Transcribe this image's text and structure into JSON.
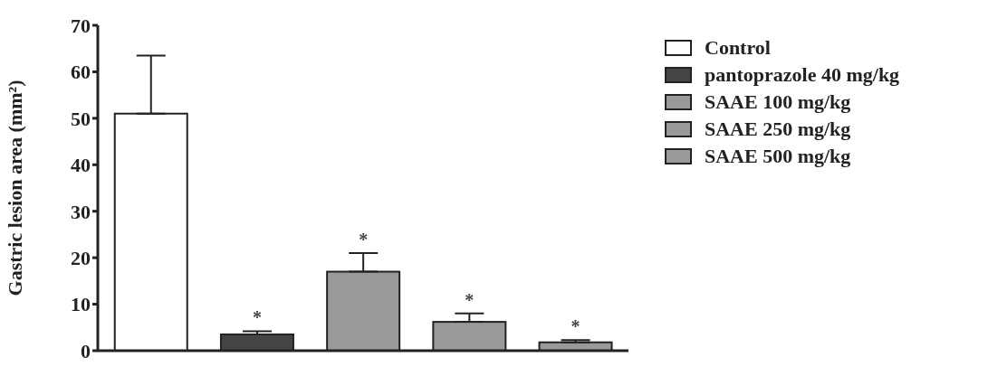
{
  "chart_data": {
    "type": "bar",
    "ylabel": "Gastric lesion area (mm²)",
    "categories": [
      null,
      null,
      null,
      null,
      null
    ],
    "stacked": true,
    "series": [
      {
        "name": "Control",
        "color": "#ffffff",
        "values": [
          51,
          null,
          null,
          null,
          null
        ],
        "errors": [
          [
            51,
            63.5
          ],
          null,
          null,
          null,
          null
        ],
        "value_labels": [
          null,
          null,
          null,
          null,
          null
        ]
      },
      {
        "name": "pantoprazole 40 mg/kg",
        "color": "#444444",
        "values": [
          null,
          3.5,
          null,
          null,
          null
        ],
        "errors": [
          null,
          [
            3.5,
            4.2
          ],
          null,
          null,
          null
        ],
        "value_labels": [
          null,
          "*",
          null,
          null,
          null
        ]
      },
      {
        "name": "SAAE 100 mg/kg",
        "color": "#999999",
        "values": [
          null,
          null,
          17,
          null,
          null
        ],
        "errors": [
          null,
          null,
          [
            17,
            21
          ],
          null,
          null
        ],
        "value_labels": [
          null,
          null,
          "*",
          null,
          null
        ]
      },
      {
        "name": "SAAE 250 mg/kg",
        "color": "#999999",
        "values": [
          null,
          null,
          null,
          6.2,
          null
        ],
        "errors": [
          null,
          null,
          null,
          [
            6.2,
            8
          ],
          null
        ],
        "value_labels": [
          null,
          null,
          null,
          "*",
          null
        ]
      },
      {
        "name": "SAAE 500 mg/kg",
        "color": "#999999",
        "values": [
          null,
          null,
          null,
          null,
          1.8
        ],
        "errors": [
          null,
          null,
          null,
          null,
          [
            1.8,
            2.3
          ]
        ],
        "value_labels": [
          null,
          null,
          null,
          null,
          "*"
        ]
      }
    ],
    "ylim": [
      0,
      70
    ],
    "yticks": [
      0,
      10,
      20,
      30,
      40,
      50,
      60,
      70
    ],
    "legend": "right",
    "tick_labels": "y"
  }
}
